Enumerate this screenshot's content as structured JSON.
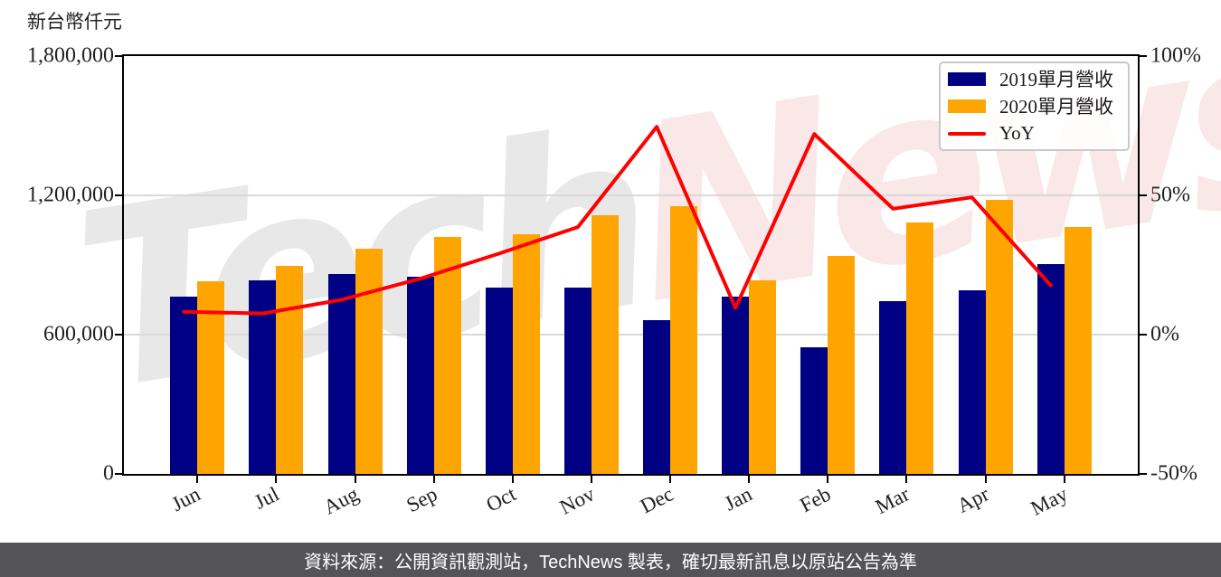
{
  "title": {
    "unit_label": "新台幣仟元"
  },
  "watermark": {
    "part1": "Tech",
    "part2": "News"
  },
  "footer": {
    "text": "資料來源：公開資訊觀測站，TechNews 製表，確切最新訊息以原站公告為準"
  },
  "colors": {
    "bar_2019": "#000084",
    "bar_2020": "#FFA502",
    "yoy_line": "#FF0000",
    "footer_bg": "#545456",
    "grid": "#D9D9D9",
    "axis": "#000000",
    "legend_border": "#C9C9C9"
  },
  "legend": {
    "items": [
      {
        "label": "2019單月營收",
        "swatch": "bar",
        "color": "#000084"
      },
      {
        "label": "2020單月營收",
        "swatch": "bar",
        "color": "#FFA502"
      },
      {
        "label": "YoY",
        "swatch": "line",
        "color": "#FF0000"
      }
    ]
  },
  "chart_data": {
    "type": "bar",
    "categories": [
      "Jun",
      "Jul",
      "Aug",
      "Sep",
      "Oct",
      "Nov",
      "Dec",
      "Jan",
      "Feb",
      "Mar",
      "Apr",
      "May"
    ],
    "series": [
      {
        "name": "2019單月營收",
        "type": "bar",
        "axis": "left",
        "color": "#000084",
        "values": [
          765000,
          834000,
          862000,
          851000,
          801000,
          804000,
          661000,
          762000,
          546000,
          746000,
          792000,
          903000
        ]
      },
      {
        "name": "2020單月營收",
        "type": "bar",
        "axis": "left",
        "color": "#FFA502",
        "values": [
          828000,
          897000,
          970000,
          1022000,
          1034000,
          1114000,
          1154000,
          835000,
          939000,
          1083000,
          1182000,
          1062000
        ]
      },
      {
        "name": "YoY",
        "type": "line",
        "axis": "right",
        "color": "#FF0000",
        "unit": "%",
        "values": [
          8.2,
          7.6,
          12.5,
          20.1,
          29.1,
          38.6,
          74.6,
          9.6,
          72.0,
          45.2,
          49.3,
          17.7
        ]
      }
    ],
    "left_axis": {
      "label": "新台幣仟元",
      "ticks": [
        "1,800,000",
        "1,200,000",
        "600,000",
        "0"
      ],
      "min": 0,
      "max": 1800000
    },
    "right_axis": {
      "ticks": [
        "100%",
        "50%",
        "0%",
        "-50%"
      ],
      "min": -50,
      "max": 100
    },
    "grid": "horizontal",
    "legend_position": "upper right"
  }
}
